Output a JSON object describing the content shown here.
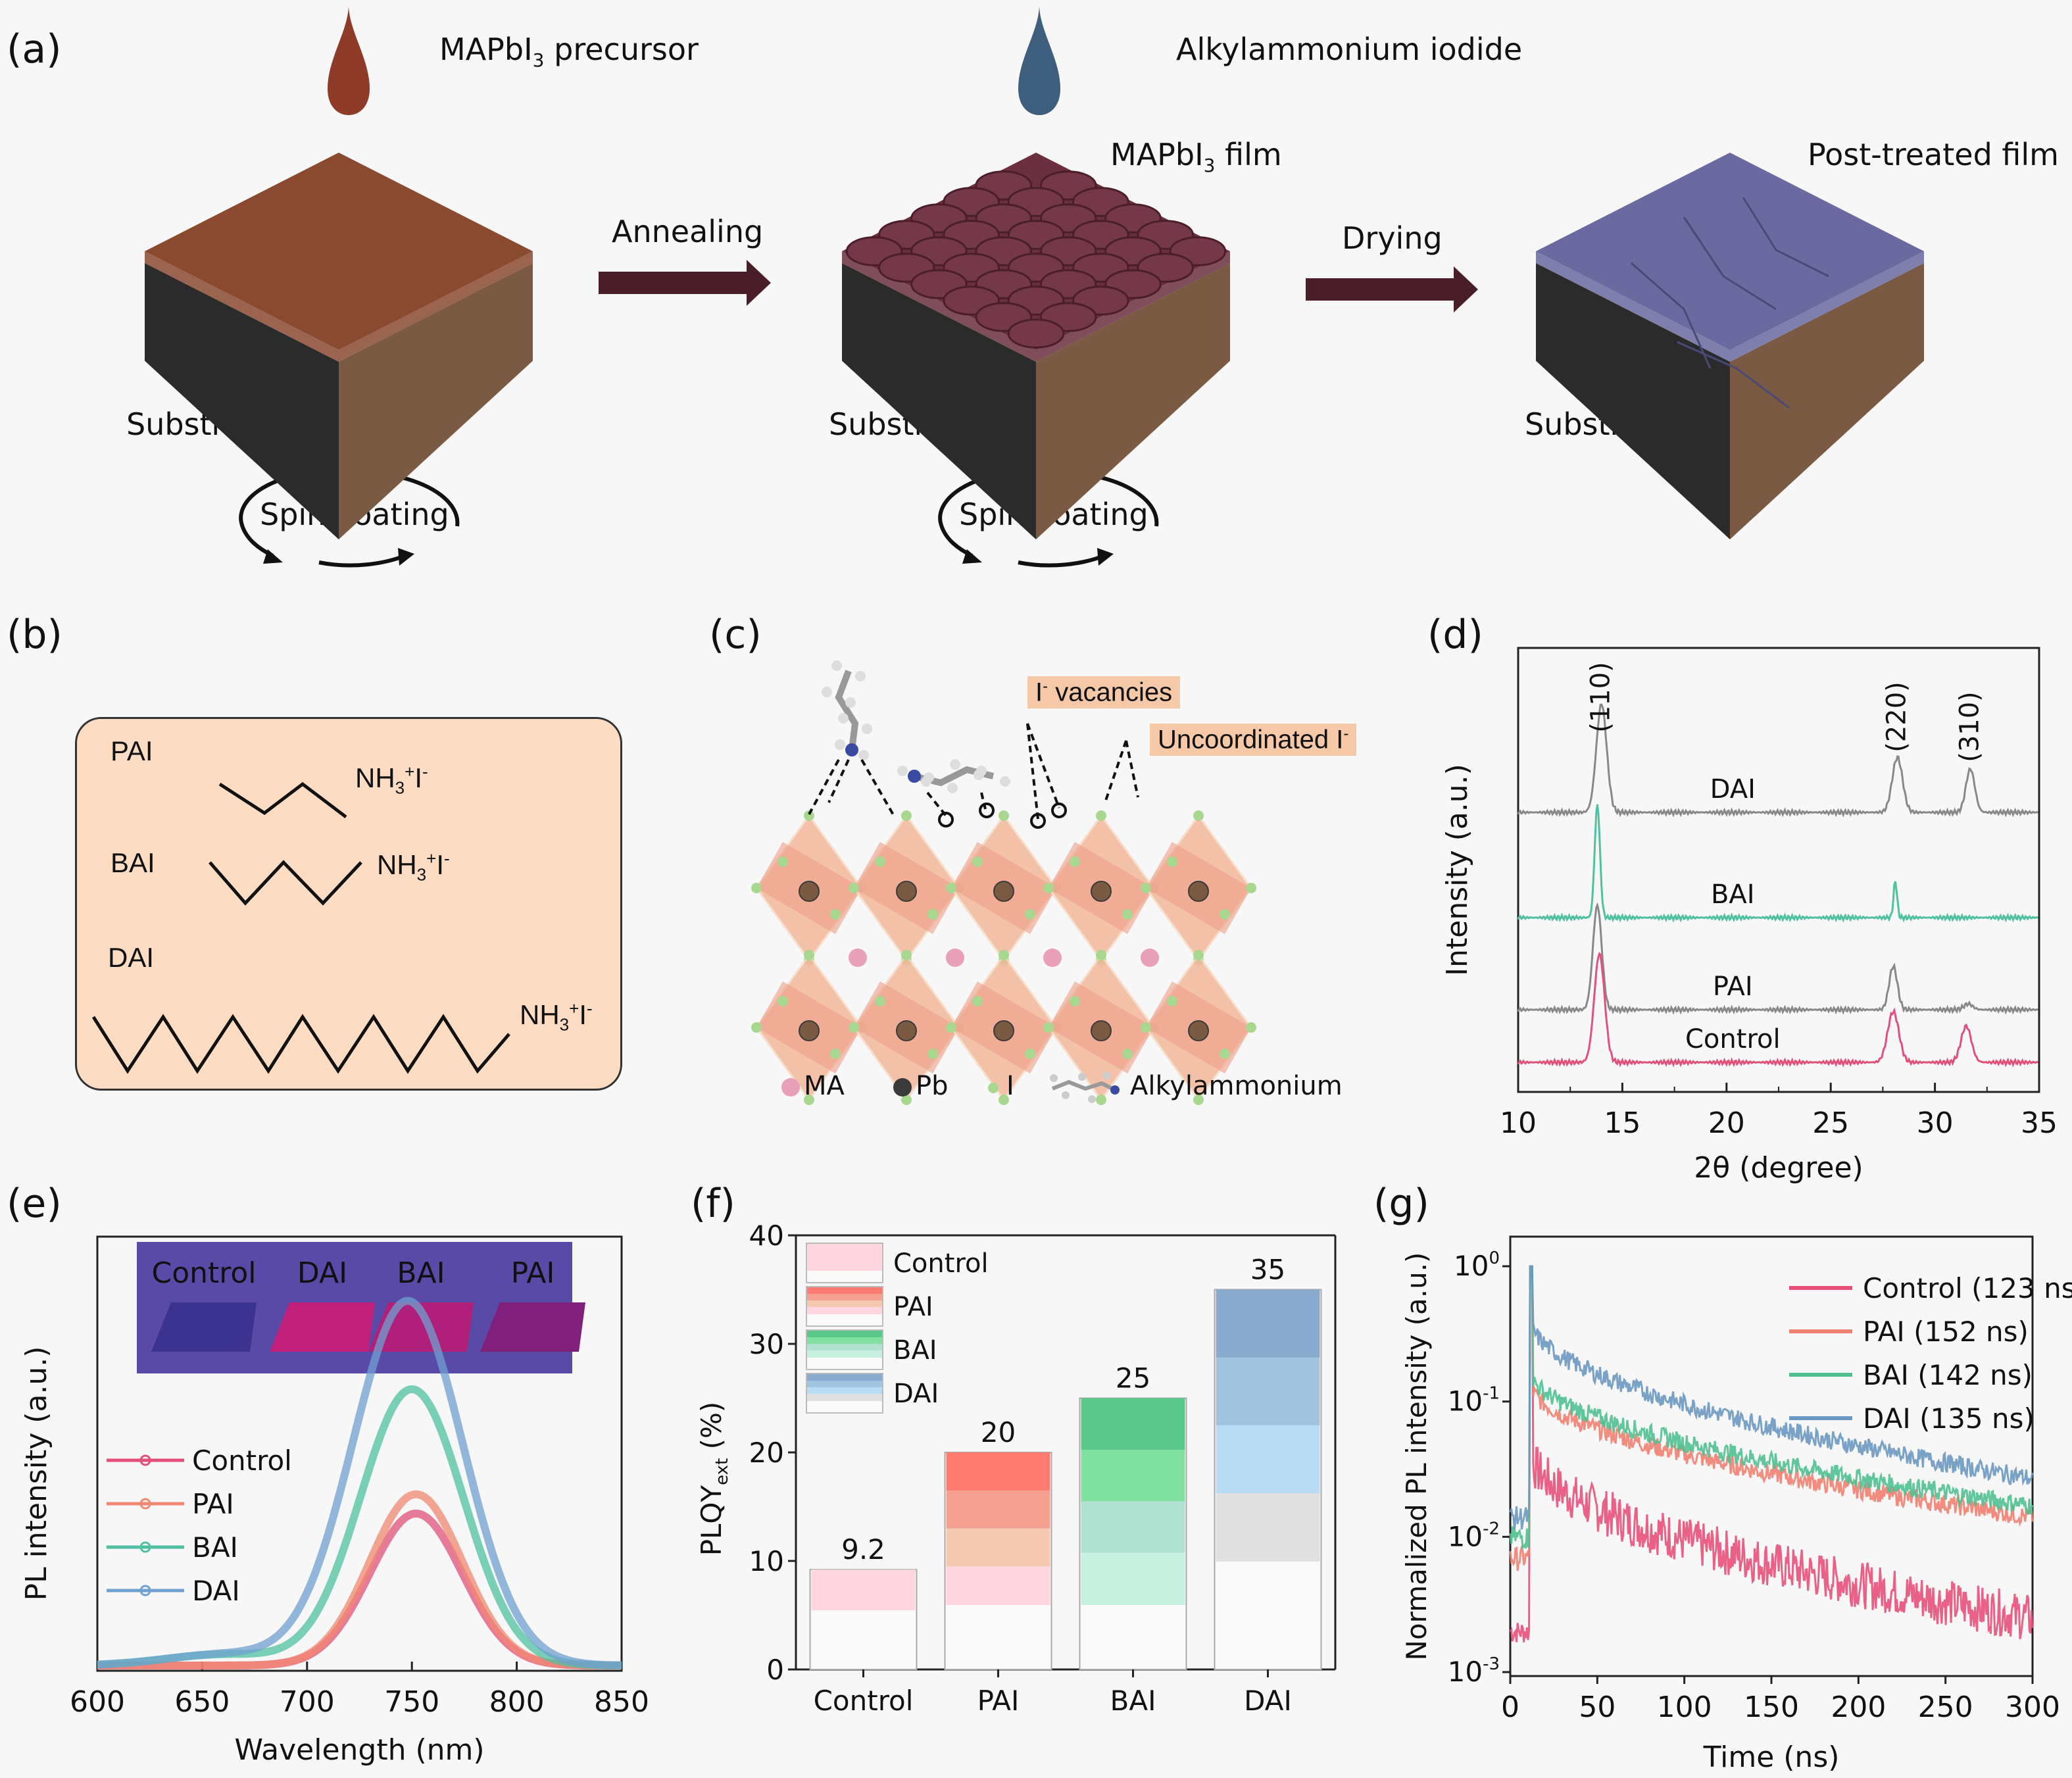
{
  "figure": {
    "panel_labels": [
      "(a)",
      "(b)",
      "(c)",
      "(d)",
      "(e)",
      "(f)",
      "(g)"
    ]
  },
  "panel_a": {
    "drop1_label": "MAPbI",
    "drop1_sub": "3",
    "drop1_suffix": " precursor",
    "drop2_label": "Alkylammonium iodide",
    "film1_label": "MAPbI",
    "film1_sub": "3",
    "film1_suffix": " film",
    "film2_label": "Post-treated film",
    "arrow1_label": "Annealing",
    "arrow2_label": "Drying",
    "substrate_label": "Substrate",
    "spin_label": "Spin-coating",
    "colors": {
      "drop1": "#8e3b2a",
      "drop2": "#3e5e7e",
      "arrow": "#4a1e28",
      "substrate_dark": "#2b2b2b",
      "substrate_side": "#7a5a42",
      "precursor_top": "#8a4a30",
      "film_grains": "#6b3040",
      "post_treated": "#6a6aa0"
    }
  },
  "panel_b": {
    "rows": [
      {
        "name": "PAI",
        "formula": "NH",
        "sub": "3",
        "sup": "+",
        "ion": "I",
        "ion_sup": "-"
      },
      {
        "name": "BAI",
        "formula": "NH",
        "sub": "3",
        "sup": "+",
        "ion": "I",
        "ion_sup": "-"
      },
      {
        "name": "DAI",
        "formula": "NH",
        "sub": "3",
        "sup": "+",
        "ion": "I",
        "ion_sup": "-"
      }
    ],
    "box_color": "#fddcc4"
  },
  "panel_c": {
    "callout1": "I",
    "callout1_sup": "-",
    "callout1_suffix": " vacancies",
    "callout2": "Uncoordinated I",
    "callout2_sup": "-",
    "legend": [
      {
        "label": "MA",
        "color": "#e8a0b8"
      },
      {
        "label": "Pb",
        "color": "#3a3a3a"
      },
      {
        "label": "I",
        "color": "#a8d890"
      },
      {
        "label": "Alkylammonium",
        "color": "#9a9a9a"
      }
    ],
    "callout_color": "#f5c9a8"
  },
  "chart_data": [
    {
      "id": "d",
      "type": "line",
      "title": "",
      "xlabel": "2θ (degree)",
      "ylabel": "Intensity (a.u.)",
      "xlim": [
        10,
        35
      ],
      "xticks": [
        10,
        15,
        20,
        25,
        30,
        35
      ],
      "peak_labels": [
        {
          "label": "(110)",
          "x": 14.0
        },
        {
          "label": "(220)",
          "x": 28.2
        },
        {
          "label": "(310)",
          "x": 31.7
        }
      ],
      "series": [
        {
          "name": "DAI",
          "color": "#888888",
          "accent": "#4fc0a0",
          "offset": 3,
          "peaks": [
            {
              "x": 14.0,
              "h": 0.75,
              "w": 0.35
            },
            {
              "x": 28.2,
              "h": 0.38,
              "w": 0.35
            },
            {
              "x": 31.7,
              "h": 0.3,
              "w": 0.3
            }
          ]
        },
        {
          "name": "BAI",
          "color": "#4fc0a0",
          "accent": "#4fc0a0",
          "offset": 2,
          "peaks": [
            {
              "x": 13.8,
              "h": 0.78,
              "w": 0.18
            },
            {
              "x": 28.1,
              "h": 0.25,
              "w": 0.12
            }
          ]
        },
        {
          "name": "PAI",
          "color": "#888888",
          "accent": "#f07a70",
          "offset": 1,
          "peaks": [
            {
              "x": 13.8,
              "h": 0.72,
              "w": 0.3
            },
            {
              "x": 28.0,
              "h": 0.3,
              "w": 0.28
            },
            {
              "x": 31.6,
              "h": 0.04,
              "w": 0.3
            }
          ]
        },
        {
          "name": "Control",
          "color": "#e0507a",
          "accent": "#e0507a",
          "offset": 0,
          "peaks": [
            {
              "x": 13.9,
              "h": 0.75,
              "w": 0.35
            },
            {
              "x": 28.0,
              "h": 0.35,
              "w": 0.38
            },
            {
              "x": 31.5,
              "h": 0.25,
              "w": 0.35
            }
          ]
        }
      ]
    },
    {
      "id": "e",
      "type": "line",
      "title": "",
      "xlabel": "Wavelength (nm)",
      "ylabel": "PL intensity (a.u.)",
      "xlim": [
        600,
        850
      ],
      "xticks": [
        600,
        650,
        700,
        750,
        800,
        850
      ],
      "inset_labels": [
        "Control",
        "DAI",
        "BAI",
        "PAI"
      ],
      "series": [
        {
          "name": "Control",
          "color": "#e0507a",
          "peak_x": 752,
          "peak_y": 0.55,
          "fwhm": 52
        },
        {
          "name": "PAI",
          "color": "#f08870",
          "peak_x": 752,
          "peak_y": 0.62,
          "fwhm": 52
        },
        {
          "name": "BAI",
          "color": "#4fc0a0",
          "peak_x": 750,
          "peak_y": 1.0,
          "fwhm": 58
        },
        {
          "name": "DAI",
          "color": "#6fa0d0",
          "peak_x": 748,
          "peak_y": 1.32,
          "fwhm": 62
        }
      ],
      "legend_position": "center-left"
    },
    {
      "id": "f",
      "type": "bar",
      "title": "",
      "xlabel": "",
      "ylabel": "PLQY",
      "ylabel_sub": "ext",
      "ylabel_suffix": " (%)",
      "ylim": [
        0,
        40
      ],
      "yticks": [
        0,
        10,
        20,
        30,
        40
      ],
      "categories": [
        "Control",
        "PAI",
        "BAI",
        "DAI"
      ],
      "values": [
        9.2,
        20,
        25,
        35
      ],
      "value_labels": [
        "9.2",
        "20",
        "25",
        "35"
      ],
      "colors": [
        [
          "#ffd6e0",
          "#ffd6e0"
        ],
        [
          "#ff7a70",
          "#f5a090",
          "#f5c8b0",
          "#ffd6e0"
        ],
        [
          "#5ac88a",
          "#80e0a0",
          "#b0e0d0",
          "#c8f0e0"
        ],
        [
          "#88aacc",
          "#a0c4e0",
          "#b8dcf4",
          "#e0e0e0"
        ]
      ],
      "legend": [
        "Control",
        "PAI",
        "BAI",
        "DAI"
      ],
      "legend_position": "top-left"
    },
    {
      "id": "g",
      "type": "line",
      "title": "",
      "xlabel": "Time (ns)",
      "ylabel": "Normalized PL intensity (a.u.)",
      "xlim": [
        0,
        300
      ],
      "ylim_log10": [
        -3,
        0
      ],
      "xticks": [
        0,
        50,
        100,
        150,
        200,
        250,
        300
      ],
      "yticks": [
        {
          "base": "10",
          "exp": "0",
          "v": 0
        },
        {
          "base": "10",
          "exp": "-1",
          "v": -1
        },
        {
          "base": "10",
          "exp": "-2",
          "v": -2
        },
        {
          "base": "10",
          "exp": "-3",
          "v": -3
        }
      ],
      "series": [
        {
          "name": "Control (123 ns)",
          "color": "#e8507a",
          "start": 0.04,
          "end": 0.0025,
          "pre": 0.002
        },
        {
          "name": "PAI (152 ns)",
          "color": "#f08070",
          "start": 0.13,
          "end": 0.014,
          "pre": 0.007
        },
        {
          "name": "BAI (142 ns)",
          "color": "#50c090",
          "start": 0.16,
          "end": 0.017,
          "pre": 0.01
        },
        {
          "name": "DAI (135 ns)",
          "color": "#6a98c0",
          "start": 0.38,
          "end": 0.027,
          "pre": 0.014
        }
      ],
      "legend_position": "top-right"
    }
  ]
}
